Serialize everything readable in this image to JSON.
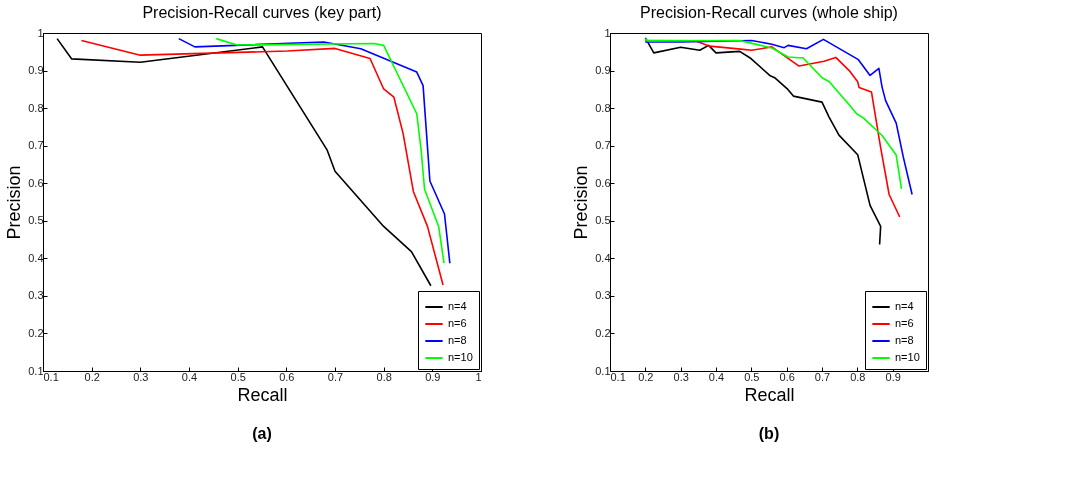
{
  "chart_data": [
    {
      "type": "line",
      "title": "Precision-Recall curves (key part)",
      "xlabel": "Recall",
      "ylabel": "Precision",
      "annotations": [
        "(a)"
      ],
      "xlim": [
        0.1,
        1
      ],
      "ylim": [
        0.1,
        1
      ],
      "xticks": [
        0.1,
        0.2,
        0.3,
        0.4,
        0.5,
        0.6,
        0.7,
        0.8,
        0.9,
        1
      ],
      "yticks": [
        0.1,
        0.2,
        0.3,
        0.4,
        0.5,
        0.6,
        0.7,
        0.8,
        0.9,
        1
      ],
      "legend": "bottom right",
      "series": [
        {
          "name": "n=4",
          "color": "#000000",
          "x": [
            0.129,
            0.159,
            0.3,
            0.551,
            0.684,
            0.7,
            0.8,
            0.857,
            0.897
          ],
          "values": [
            0.985,
            0.931,
            0.922,
            0.963,
            0.688,
            0.632,
            0.485,
            0.418,
            0.327
          ]
        },
        {
          "name": "n=6",
          "color": "#ff0000",
          "x": [
            0.179,
            0.3,
            0.602,
            0.7,
            0.772,
            0.8,
            0.821,
            0.84,
            0.861,
            0.89,
            0.922
          ],
          "values": [
            0.98,
            0.941,
            0.952,
            0.959,
            0.932,
            0.851,
            0.829,
            0.732,
            0.578,
            0.485,
            0.329
          ]
        },
        {
          "name": "n=8",
          "color": "#0000ff",
          "x": [
            0.379,
            0.412,
            0.677,
            0.753,
            0.868,
            0.881,
            0.895,
            0.925,
            0.936
          ],
          "values": [
            0.985,
            0.963,
            0.976,
            0.958,
            0.896,
            0.86,
            0.606,
            0.518,
            0.387
          ]
        },
        {
          "name": "n=10",
          "color": "#00ff00",
          "x": [
            0.456,
            0.499,
            0.78,
            0.8,
            0.868,
            0.877,
            0.884,
            0.913,
            0.924
          ],
          "values": [
            0.985,
            0.968,
            0.972,
            0.967,
            0.785,
            0.688,
            0.584,
            0.485,
            0.387
          ]
        }
      ]
    },
    {
      "type": "line",
      "title": "Precision-Recall curves (whole ship)",
      "xlabel": "Recall",
      "ylabel": "Precision",
      "annotations": [
        "(b)"
      ],
      "xlim": [
        0.1,
        1
      ],
      "ylim": [
        0.1,
        1
      ],
      "xticks": [
        0.1,
        0.2,
        0.3,
        0.4,
        0.5,
        0.6,
        0.7,
        0.8,
        0.9
      ],
      "yticks": [
        0.1,
        0.2,
        0.3,
        0.4,
        0.5,
        0.6,
        0.7,
        0.8,
        0.9,
        1
      ],
      "legend": "bottom right",
      "series": [
        {
          "name": "n=4",
          "color": "#000000",
          "x": [
            0.2,
            0.224,
            0.3,
            0.354,
            0.379,
            0.4,
            0.467,
            0.499,
            0.552,
            0.566,
            0.601,
            0.619,
            0.7,
            0.72,
            0.748,
            0.801,
            0.836,
            0.866,
            0.863
          ],
          "values": [
            0.987,
            0.947,
            0.962,
            0.954,
            0.967,
            0.947,
            0.951,
            0.932,
            0.887,
            0.881,
            0.852,
            0.832,
            0.816,
            0.776,
            0.728,
            0.676,
            0.541,
            0.485,
            0.437
          ]
        },
        {
          "name": "n=6",
          "color": "#ff0000",
          "x": [
            0.2,
            0.343,
            0.382,
            0.47,
            0.501,
            0.558,
            0.635,
            0.706,
            0.739,
            0.777,
            0.801,
            0.805,
            0.84,
            0.865,
            0.89,
            0.92
          ],
          "values": [
            0.98,
            0.979,
            0.965,
            0.957,
            0.954,
            0.963,
            0.912,
            0.925,
            0.935,
            0.9,
            0.87,
            0.855,
            0.843,
            0.7,
            0.57,
            0.51
          ]
        },
        {
          "name": "n=8",
          "color": "#0000ff",
          "x": [
            0.2,
            0.3,
            0.501,
            0.558,
            0.593,
            0.604,
            0.656,
            0.704,
            0.803,
            0.836,
            0.861,
            0.87,
            0.88,
            0.91,
            0.93,
            0.955
          ],
          "values": [
            0.976,
            0.976,
            0.98,
            0.97,
            0.961,
            0.967,
            0.958,
            0.983,
            0.929,
            0.887,
            0.906,
            0.856,
            0.82,
            0.76,
            0.67,
            0.57
          ]
        },
        {
          "name": "n=10",
          "color": "#00ff00",
          "x": [
            0.2,
            0.206,
            0.467,
            0.499,
            0.558,
            0.604,
            0.635,
            0.646,
            0.701,
            0.72,
            0.777,
            0.798,
            0.817,
            0.87,
            0.91,
            0.925
          ],
          "values": [
            0.985,
            0.979,
            0.98,
            0.973,
            0.96,
            0.936,
            0.934,
            0.934,
            0.88,
            0.871,
            0.809,
            0.785,
            0.774,
            0.727,
            0.675,
            0.585
          ]
        }
      ]
    }
  ]
}
